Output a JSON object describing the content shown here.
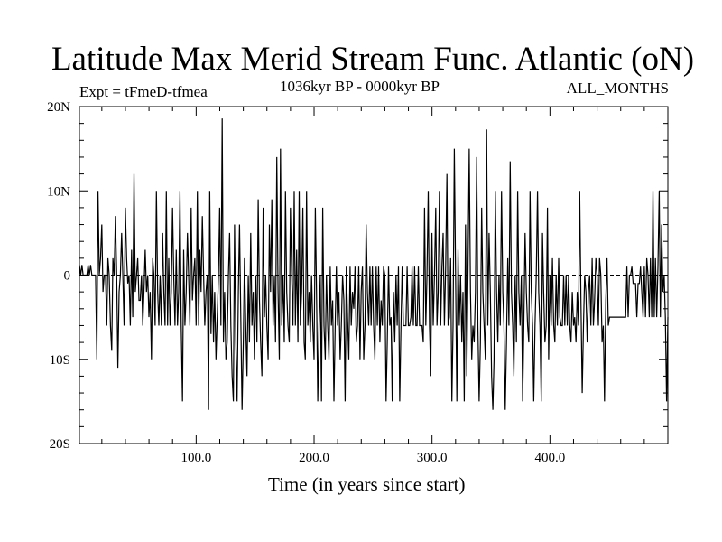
{
  "title": "Latitude Max Merid Stream Func. Atlantic (oN)",
  "subtitle_left": "Expt = tFmeD-tfmea",
  "subtitle_center": "1036kyr BP - 0000kyr BP",
  "subtitle_right": "ALL_MONTHS",
  "chart_data": {
    "type": "line",
    "title": "Latitude Max Merid Stream Func. Atlantic (oN)",
    "xlabel": "Time (in years since start)",
    "ylabel": "",
    "xlim": [
      1,
      500
    ],
    "ylim": [
      -20,
      20
    ],
    "x_ticks": [
      {
        "value": 100,
        "label": "100.0"
      },
      {
        "value": 200,
        "label": "200.0"
      },
      {
        "value": 300,
        "label": "300.0"
      },
      {
        "value": 400,
        "label": "400.0"
      }
    ],
    "y_ticks": [
      {
        "value": 20,
        "label": "20N"
      },
      {
        "value": 10,
        "label": "10N"
      },
      {
        "value": 0,
        "label": "0"
      },
      {
        "value": -10,
        "label": "10S"
      },
      {
        "value": -20,
        "label": "20S"
      }
    ],
    "zero_line": true,
    "grid": false,
    "series": [
      {
        "color": "#000000",
        "values": [
          1.2,
          0,
          1.2,
          0,
          0,
          0,
          0,
          1.2,
          0,
          1.2,
          0,
          0,
          0,
          0,
          -10,
          10,
          0,
          2,
          6,
          -2,
          0,
          0,
          -6,
          2,
          0,
          -6,
          -9,
          2,
          0,
          7,
          0,
          -11,
          -2,
          0,
          5,
          0,
          -6,
          8,
          2,
          -1,
          0,
          -6,
          3,
          -5,
          12,
          -2,
          0,
          2,
          -3,
          -3,
          0,
          -6,
          -2,
          3,
          -2,
          0,
          -5,
          -2,
          -10,
          2,
          0,
          -6,
          10,
          -2,
          -6,
          0,
          -6,
          5,
          -2,
          -6,
          10,
          -6,
          2,
          -6,
          -2,
          8,
          0,
          -6,
          3,
          -6,
          -2,
          10,
          -6,
          -15,
          3,
          -6,
          -2,
          5,
          0,
          -6,
          8,
          -3,
          0,
          2,
          -6,
          10,
          -6,
          3,
          -2,
          7,
          0,
          -6,
          -2,
          0,
          -16,
          10,
          -7,
          0,
          -8,
          -2,
          -10,
          -5,
          0,
          8,
          -6,
          18.6,
          -8,
          -2,
          -10,
          -8,
          0,
          5,
          -6,
          -12,
          -15,
          6,
          -8,
          -15,
          -2,
          6,
          -5,
          -16,
          -8,
          2,
          -6,
          -12,
          0,
          -8,
          5,
          -6,
          -2,
          -10,
          0,
          -8,
          9,
          -3,
          -8,
          -12,
          8,
          -5,
          0,
          -6,
          -10,
          6,
          -2,
          9,
          -6,
          0,
          -8,
          14,
          -2,
          -10,
          15,
          -6,
          0,
          -8,
          10,
          -2,
          -6,
          -8,
          8,
          0,
          -6,
          10,
          -6,
          3,
          -8,
          10,
          -6,
          -2,
          8,
          -8,
          -10,
          10,
          -6,
          -2,
          -8,
          0,
          -6,
          -10,
          8,
          -2,
          -15,
          -6,
          0,
          -15,
          8,
          -6,
          -10,
          0,
          -6,
          -10,
          1,
          -6,
          -3,
          -15,
          -6,
          1,
          -6,
          -2,
          -10,
          -6,
          0,
          -3,
          -15,
          1,
          -5,
          -10,
          1,
          -6,
          -2,
          -4,
          1,
          -8,
          -6,
          1,
          -10,
          -2,
          1,
          -10,
          -6,
          6,
          -2,
          -6,
          1,
          -6,
          1,
          -6,
          -10,
          1,
          -6,
          1,
          -8,
          -3,
          -6,
          1,
          0,
          -15,
          -8,
          1,
          -6,
          -5,
          -15,
          -2,
          -8,
          0,
          -6,
          1,
          -15,
          -6,
          1,
          -6,
          -6,
          -6,
          1,
          -6,
          -6,
          -5,
          1,
          -6,
          1,
          -6,
          -6,
          1,
          -6,
          -6,
          -6,
          -8,
          8,
          -6,
          0,
          10,
          -6,
          -12,
          5,
          -6,
          0,
          8,
          -6,
          -2,
          10,
          -6,
          1,
          5,
          -6,
          1,
          12,
          -6,
          -5,
          2,
          -15,
          -6,
          15,
          0,
          -15,
          3,
          -6,
          0,
          -8,
          -2,
          -15,
          6,
          -12,
          0,
          15,
          -2,
          -10,
          -6,
          -8,
          -2,
          14,
          -6,
          -15,
          -8,
          8,
          -2,
          -6,
          -10,
          17.3,
          -6,
          5,
          -2,
          -12,
          -16,
          -10,
          10,
          -2,
          -8,
          0,
          -6,
          10,
          -2,
          -6,
          -16,
          -8,
          2,
          -6,
          13.5,
          -2,
          -6,
          -12,
          0,
          -8,
          10,
          -2,
          -6,
          0,
          -15,
          -6,
          5,
          -2,
          -6,
          -8,
          10,
          -2,
          -6,
          -15,
          -6,
          0,
          10,
          -2,
          -6,
          -15,
          5,
          -2,
          -8,
          -6,
          8,
          -10,
          0,
          -6,
          2,
          -6,
          -8,
          0,
          -6,
          2,
          -5,
          -6,
          -6,
          0,
          -6,
          0,
          -6,
          0,
          -6,
          -8,
          -2,
          -6,
          -5,
          -8,
          -2,
          -6,
          10,
          -3,
          -14,
          -6,
          0,
          -2,
          -8,
          -2,
          0,
          -6,
          2,
          -6,
          -3,
          2,
          0,
          -6,
          2,
          0,
          -8,
          -6,
          -15,
          -3,
          2,
          -6,
          -5,
          -5,
          -5,
          -5,
          -5,
          -5,
          -5,
          -5,
          -5,
          -5,
          -5,
          -5,
          -5,
          -5,
          1,
          -5,
          0,
          0,
          1,
          -1,
          -1,
          -1,
          -5,
          -1,
          -1,
          1,
          -2,
          -5,
          1,
          -5,
          2,
          0,
          -5,
          2,
          -5,
          10,
          -5,
          2,
          -5,
          1,
          10,
          -5,
          6,
          -2,
          0,
          -5,
          -15,
          -5
        ]
      }
    ]
  }
}
